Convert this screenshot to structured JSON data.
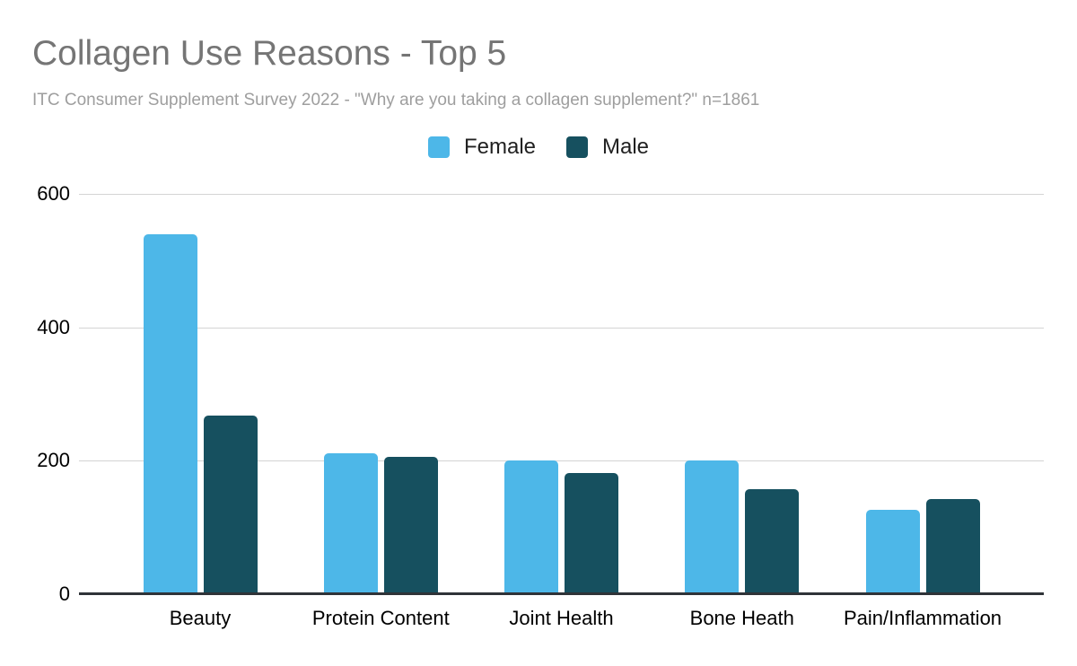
{
  "header": {
    "title": "Collagen Use Reasons - Top 5",
    "subtitle": "ITC Consumer Supplement Survey 2022 - \"Why are you taking a collagen supplement?\" n=1861"
  },
  "chart_data": {
    "type": "bar",
    "title": "Collagen Use Reasons - Top 5",
    "subtitle": "ITC Consumer Supplement Survey 2022 - \"Why are you taking a collagen supplement?\" n=1861",
    "categories": [
      "Beauty",
      "Protein Content",
      "Joint Health",
      "Bone Heath",
      "Pain/Inflammation"
    ],
    "series": [
      {
        "name": "Female",
        "color": "#4db7e8",
        "values": [
          540,
          211,
          200,
          200,
          126
        ]
      },
      {
        "name": "Male",
        "color": "#16505f",
        "values": [
          268,
          206,
          182,
          157,
          142
        ]
      }
    ],
    "xlabel": "",
    "ylabel": "",
    "ylim": [
      0,
      600
    ],
    "yticks": [
      0,
      200,
      400,
      600
    ],
    "grid": true,
    "legend_position": "top-center"
  },
  "theme": {
    "background": "#ffffff",
    "title_color": "#757575",
    "subtitle_color": "#9e9e9e",
    "grid_color": "#d4d4d4",
    "axis_line_color": "#2f3338",
    "tick_label_color": "#000000"
  }
}
